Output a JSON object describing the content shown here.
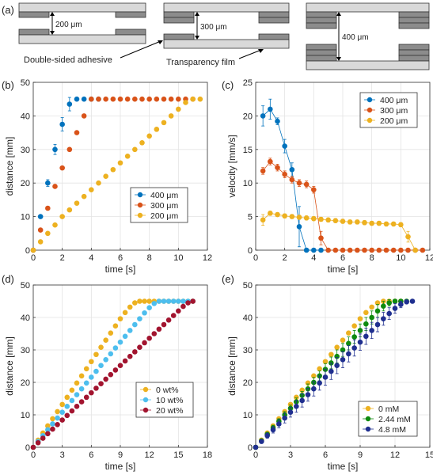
{
  "schematic": {
    "label": "(a)",
    "gaps": [
      "200 μm",
      "300 μm",
      "400 μm"
    ],
    "adhesive_label": "Double-sided adhesive",
    "film_label": "Transparency film",
    "colors": {
      "film": "#d9d9d9",
      "adhesive": "#8c8c8c",
      "outline": "#333333"
    }
  },
  "chart_data": [
    {
      "panel": "(b)",
      "type": "scatter",
      "xlabel": "time [s]",
      "ylabel": "distance [mm]",
      "xlim": [
        0,
        12
      ],
      "ylim": [
        0,
        50
      ],
      "xticks": [
        0,
        2,
        4,
        6,
        8,
        10,
        12
      ],
      "yticks": [
        0,
        10,
        20,
        30,
        40,
        50
      ],
      "grid": true,
      "legend": "center-right",
      "series": [
        {
          "name": "400 μm",
          "color": "#0072BD",
          "x": [
            0,
            0.5,
            1,
            1.5,
            2,
            2.5,
            3,
            3.5,
            4,
            4.5
          ],
          "y": [
            0,
            10,
            20,
            30,
            37.5,
            43.5,
            45,
            45,
            45,
            45
          ],
          "err": [
            0,
            0.5,
            1,
            1.5,
            2,
            2,
            0.5,
            0,
            0,
            0
          ]
        },
        {
          "name": "300 μm",
          "color": "#D95319",
          "x": [
            0,
            0.5,
            1,
            1.5,
            2,
            2.5,
            3,
            3.5,
            4,
            4.5,
            5,
            5.5,
            6,
            6.5,
            7,
            7.5,
            8,
            8.5,
            9,
            9.5,
            10,
            10.5,
            11
          ],
          "y": [
            0,
            6,
            12.5,
            19,
            24.5,
            30,
            35,
            40,
            45,
            45,
            45,
            45,
            45,
            45,
            45,
            45,
            45,
            45,
            45,
            45,
            45,
            45,
            45
          ]
        },
        {
          "name": "200 μm",
          "color": "#EDB120",
          "x": [
            0,
            0.5,
            1,
            1.5,
            2,
            2.5,
            3,
            3.5,
            4,
            4.5,
            5,
            5.5,
            6,
            6.5,
            7,
            7.5,
            8,
            8.5,
            9,
            9.5,
            10,
            10.5,
            11,
            11.5
          ],
          "y": [
            0,
            2.5,
            5,
            7.5,
            10,
            12,
            14,
            16,
            18,
            20,
            22,
            24,
            26,
            28,
            30,
            32,
            34,
            36,
            38,
            40,
            42,
            44,
            45,
            45
          ]
        }
      ]
    },
    {
      "panel": "(c)",
      "type": "line",
      "xlabel": "time [s]",
      "ylabel": "velocity [mm/s]",
      "xlim": [
        0,
        12
      ],
      "ylim": [
        0,
        25
      ],
      "xticks": [
        0,
        2,
        4,
        6,
        8,
        10,
        12
      ],
      "yticks": [
        0,
        5,
        10,
        15,
        20,
        25
      ],
      "grid": true,
      "legend": "top-right",
      "series": [
        {
          "name": "400 μm",
          "color": "#0072BD",
          "x": [
            0.5,
            1,
            1.5,
            2,
            2.5,
            3,
            3.5,
            4,
            4.5
          ],
          "y": [
            20,
            21,
            19.2,
            15.5,
            12,
            3.5,
            0,
            0,
            0
          ],
          "err": [
            1.5,
            1.5,
            0.5,
            1,
            1,
            3,
            0,
            0,
            0
          ]
        },
        {
          "name": "300 μm",
          "color": "#D95319",
          "x": [
            0.5,
            1,
            1.5,
            2,
            2.5,
            3,
            3.5,
            4,
            4.5,
            5,
            5.5,
            6,
            6.5,
            7,
            7.5,
            8,
            8.5,
            9,
            9.5,
            10,
            10.5,
            11,
            11.5
          ],
          "y": [
            11.8,
            13.2,
            12.3,
            11.3,
            10.5,
            10,
            9.8,
            9,
            1.8,
            0,
            0,
            0,
            0,
            0,
            0,
            0,
            0,
            0,
            0,
            0,
            0,
            0,
            0
          ],
          "err": [
            0.5,
            0.5,
            0.5,
            0.5,
            0.5,
            0.5,
            0.5,
            0.5,
            1,
            0,
            0,
            0,
            0,
            0,
            0,
            0,
            0,
            0,
            0,
            0,
            0,
            0,
            0
          ]
        },
        {
          "name": "200 μm",
          "color": "#EDB120",
          "x": [
            0.5,
            1,
            1.5,
            2,
            2.5,
            3,
            3.5,
            4,
            4.5,
            5,
            5.5,
            6,
            6.5,
            7,
            7.5,
            8,
            8.5,
            9,
            9.5,
            10,
            10.5,
            11
          ],
          "y": [
            4.5,
            5.5,
            5.3,
            5.1,
            5,
            4.9,
            4.8,
            4.7,
            4.6,
            4.5,
            4.4,
            4.3,
            4.2,
            4.2,
            4.1,
            4.0,
            4.0,
            3.9,
            3.9,
            3.8,
            2,
            0
          ],
          "err": [
            0.8,
            0.3,
            0.3,
            0.3,
            0.3,
            0.3,
            0.3,
            0.3,
            0.3,
            0.3,
            0.3,
            0.3,
            0.3,
            0.3,
            0.3,
            0.3,
            0.3,
            0.3,
            0.3,
            0.3,
            0.8,
            0
          ]
        }
      ]
    },
    {
      "panel": "(d)",
      "type": "scatter",
      "xlabel": "time [s]",
      "ylabel": "distance [mm]",
      "xlim": [
        0,
        18
      ],
      "ylim": [
        0,
        50
      ],
      "xticks": [
        0,
        3,
        6,
        9,
        12,
        15,
        18
      ],
      "yticks": [
        0,
        10,
        20,
        30,
        40,
        50
      ],
      "grid": true,
      "legend": "center-right",
      "series": [
        {
          "name": "0 wt%",
          "color": "#EDB120",
          "x": [
            0,
            0.5,
            1,
            1.5,
            2,
            2.5,
            3,
            3.5,
            4,
            4.5,
            5,
            5.5,
            6,
            6.5,
            7,
            7.5,
            8,
            8.5,
            9,
            9.5,
            10,
            10.5,
            11,
            11.5,
            12,
            12.5,
            13,
            13.5,
            14,
            14.5,
            15,
            15.5,
            16,
            16.5
          ],
          "y": [
            0,
            2.2,
            4.4,
            6.6,
            8.8,
            11,
            13.2,
            15.4,
            17.6,
            19.8,
            22,
            24.2,
            26.4,
            28.6,
            30.8,
            33,
            35.2,
            37.4,
            39.6,
            41.5,
            43.2,
            44.5,
            45,
            45,
            45,
            45,
            45,
            45,
            45,
            45,
            45,
            45,
            45,
            45
          ]
        },
        {
          "name": "10 wt%",
          "color": "#4DBEEE",
          "x": [
            0,
            0.5,
            1,
            1.5,
            2,
            2.5,
            3,
            3.5,
            4,
            4.5,
            5,
            5.5,
            6,
            6.5,
            7,
            7.5,
            8,
            8.5,
            9,
            9.5,
            10,
            10.5,
            11,
            11.5,
            12,
            12.5,
            13,
            13.5,
            14,
            14.5,
            15,
            15.5,
            16,
            16.5
          ],
          "y": [
            0,
            1.8,
            3.6,
            5.4,
            7.2,
            9,
            10.8,
            12.6,
            14.4,
            16.2,
            18,
            19.8,
            21.6,
            23.4,
            25.2,
            27,
            28.8,
            30.6,
            32.4,
            34.2,
            36,
            37.8,
            39.6,
            41.4,
            43,
            44.3,
            45,
            45,
            45,
            45,
            45,
            45,
            45,
            45
          ]
        },
        {
          "name": "20 wt%",
          "color": "#A2142F",
          "x": [
            0,
            0.5,
            1,
            1.5,
            2,
            2.5,
            3,
            3.5,
            4,
            4.5,
            5,
            5.5,
            6,
            6.5,
            7,
            7.5,
            8,
            8.5,
            9,
            9.5,
            10,
            10.5,
            11,
            11.5,
            12,
            12.5,
            13,
            13.5,
            14,
            14.5,
            15,
            15.5,
            16,
            16.5
          ],
          "y": [
            0,
            1.4,
            2.8,
            4.2,
            5.6,
            7,
            8.4,
            9.8,
            11.2,
            12.6,
            14,
            15.4,
            16.8,
            18.2,
            19.6,
            21,
            22.4,
            23.8,
            25.2,
            26.6,
            28,
            29.4,
            30.8,
            32.2,
            33.6,
            35,
            36.4,
            37.8,
            39.2,
            40.6,
            42,
            43.4,
            44.5,
            45
          ]
        }
      ]
    },
    {
      "panel": "(e)",
      "type": "scatter",
      "xlabel": "time [s]",
      "ylabel": "distance [mm]",
      "xlim": [
        0,
        15
      ],
      "ylim": [
        0,
        50
      ],
      "xticks": [
        0,
        3,
        6,
        9,
        12,
        15
      ],
      "yticks": [
        0,
        10,
        20,
        30,
        40,
        50
      ],
      "grid": true,
      "legend": "bottom-right",
      "series": [
        {
          "name": "0 mM",
          "color": "#EDB120",
          "x": [
            0,
            0.5,
            1,
            1.5,
            2,
            2.5,
            3,
            3.5,
            4,
            4.5,
            5,
            5.5,
            6,
            6.5,
            7,
            7.5,
            8,
            8.5,
            9,
            9.5,
            10,
            10.5,
            11,
            11.5,
            12,
            12.5
          ],
          "y": [
            0,
            2.2,
            4.4,
            6.6,
            8.8,
            11,
            13.2,
            15.4,
            17.6,
            19.8,
            22,
            24.2,
            26.4,
            28.6,
            30.8,
            33,
            35.2,
            37.4,
            39.6,
            41.5,
            43.2,
            44.5,
            45,
            45,
            45,
            45
          ]
        },
        {
          "name": "2.44 mM",
          "color": "#0E8A0E",
          "x": [
            0,
            0.5,
            1,
            1.5,
            2,
            2.5,
            3,
            3.5,
            4,
            4.5,
            5,
            5.5,
            6,
            6.5,
            7,
            7.5,
            8,
            8.5,
            9,
            9.5,
            10,
            10.5,
            11,
            11.5,
            12,
            12.5,
            13
          ],
          "y": [
            0,
            2,
            4,
            6,
            8,
            10,
            12,
            14,
            16,
            18,
            20,
            22,
            24,
            26,
            28,
            30,
            32,
            34,
            36,
            38,
            40,
            42,
            43.5,
            44.5,
            45,
            45,
            45
          ],
          "err": [
            0,
            0.5,
            0.5,
            0.8,
            0.8,
            1,
            1,
            1.2,
            1.2,
            1.5,
            1.5,
            1.5,
            1.8,
            1.8,
            2,
            2,
            2,
            2,
            2,
            2,
            2,
            2,
            1.5,
            1,
            0.5,
            0.5,
            0
          ]
        },
        {
          "name": "4.8 mM",
          "color": "#1F2F8F",
          "x": [
            0,
            0.5,
            1,
            1.5,
            2,
            2.5,
            3,
            3.5,
            4,
            4.5,
            5,
            5.5,
            6,
            6.5,
            7,
            7.5,
            8,
            8.5,
            9,
            9.5,
            10,
            10.5,
            11,
            11.5,
            12,
            12.5,
            13,
            13.5
          ],
          "y": [
            0,
            1.8,
            3.6,
            5.4,
            7.2,
            9,
            10.8,
            12.6,
            14.4,
            16.2,
            18,
            19.8,
            21.6,
            23.4,
            25.2,
            27,
            28.8,
            30.6,
            32.4,
            34.2,
            36,
            37.8,
            39.6,
            41.2,
            42.8,
            44,
            44.8,
            45
          ],
          "err": [
            0,
            0.5,
            0.8,
            1,
            1.2,
            1.5,
            1.5,
            1.8,
            2,
            2,
            2.2,
            2.2,
            2.5,
            2.5,
            2.5,
            2.5,
            2.5,
            2.5,
            2.5,
            2.5,
            2.5,
            2.2,
            2,
            1.8,
            1.5,
            1,
            0.5,
            0
          ]
        }
      ]
    }
  ]
}
